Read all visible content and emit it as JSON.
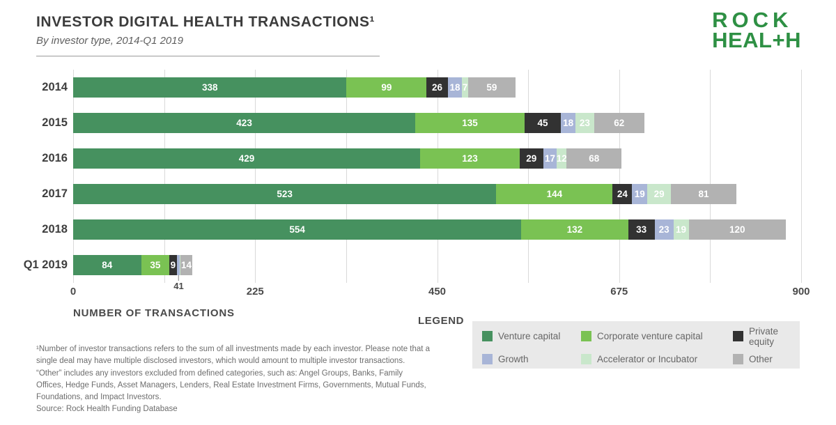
{
  "header": {
    "title": "INVESTOR DIGITAL HEALTH TRANSACTIONS¹",
    "subtitle": "By investor type, 2014-Q1 2019"
  },
  "logo": {
    "line1": "ROCK",
    "line2": "HEAL+H",
    "color": "#2e9044"
  },
  "chart_data": {
    "type": "bar",
    "orientation": "horizontal",
    "stacked": true,
    "title": "INVESTOR DIGITAL HEALTH TRANSACTIONS",
    "xlabel": "NUMBER OF TRANSACTIONS",
    "xlim": [
      0,
      900
    ],
    "x_ticks": [
      0,
      225,
      450,
      675,
      900
    ],
    "gridline_step": 112.5,
    "grid": true,
    "legend_position": "bottom-right",
    "categories": [
      "2014",
      "2015",
      "2016",
      "2017",
      "2018",
      "Q1 2019"
    ],
    "series": [
      {
        "name": "Venture capital",
        "color": "#46915f",
        "values": [
          338,
          423,
          429,
          523,
          554,
          84
        ]
      },
      {
        "name": "Corporate venture capital",
        "color": "#7ac253",
        "values": [
          99,
          135,
          123,
          144,
          132,
          35
        ]
      },
      {
        "name": "Private equity",
        "color": "#323232",
        "values": [
          26,
          45,
          29,
          24,
          33,
          9
        ]
      },
      {
        "name": "Growth",
        "color": "#a8b5d7",
        "values": [
          18,
          18,
          17,
          19,
          23,
          4
        ]
      },
      {
        "name": "Accelerator or Incubator",
        "color": "#c9e7cb",
        "values": [
          7,
          23,
          12,
          29,
          19,
          1
        ]
      },
      {
        "name": "Other",
        "color": "#b2b2b2",
        "values": [
          59,
          62,
          68,
          81,
          120,
          14
        ]
      }
    ],
    "callout": {
      "category": "Q1 2019",
      "label": "41"
    }
  },
  "legend": {
    "title": "LEGEND"
  },
  "footnote": {
    "lines": [
      "¹Number of investor transactions refers to the sum of all investments made by each investor. Please note that a",
      "single deal may have multiple disclosed investors, which would amount to multiple investor transactions.",
      "“Other” includes any investors excluded from defined categories, such as: Angel Groups, Banks, Family",
      "Offices, Hedge Funds, Asset Managers, Lenders, Real Estate Investment Firms, Governments, Mutual Funds,",
      "Foundations, and Impact Investors.",
      "Source: Rock Health Funding Database"
    ]
  }
}
